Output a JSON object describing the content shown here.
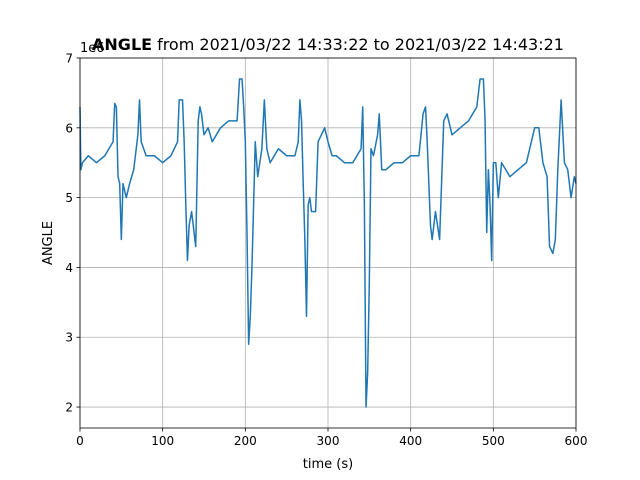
{
  "chart_data": {
    "type": "line",
    "title": [
      "ANGLE",
      "from 2021/03/22 14:33:22 to 2021/03/22 14:43:21"
    ],
    "x_label": "time (s)",
    "y_label": "ANGLE",
    "y_offset_text": "1e6",
    "x": [
      0,
      1,
      3,
      10,
      20,
      30,
      40,
      42,
      44,
      46,
      48,
      50,
      52,
      56,
      60,
      65,
      70,
      72,
      74,
      80,
      90,
      100,
      110,
      118,
      120,
      124,
      126,
      128,
      130,
      132,
      135,
      140,
      143,
      145,
      147,
      150,
      155,
      160,
      170,
      180,
      190,
      193,
      196,
      198,
      200,
      202,
      204,
      206,
      208,
      210,
      212,
      215,
      220,
      223,
      226,
      230,
      240,
      250,
      260,
      264,
      266,
      268,
      270,
      272,
      274,
      276,
      278,
      280,
      285,
      288,
      292,
      296,
      300,
      305,
      310,
      320,
      330,
      340,
      342,
      344,
      346,
      348,
      350,
      352,
      355,
      360,
      362,
      365,
      370,
      380,
      390,
      400,
      410,
      415,
      418,
      420,
      424,
      426,
      430,
      435,
      440,
      444,
      450,
      460,
      470,
      480,
      484,
      488,
      490,
      492,
      494,
      496,
      498,
      500,
      503,
      506,
      510,
      520,
      530,
      540,
      550,
      555,
      560,
      565,
      568,
      572,
      575,
      578,
      582,
      586,
      590,
      594,
      598,
      600
    ],
    "values": [
      6.3,
      5.4,
      5.5,
      5.6,
      5.5,
      5.6,
      5.8,
      6.35,
      6.3,
      5.3,
      5.2,
      4.4,
      5.2,
      5.0,
      5.2,
      5.4,
      5.9,
      6.4,
      5.8,
      5.6,
      5.6,
      5.5,
      5.6,
      5.8,
      6.4,
      6.4,
      5.8,
      4.9,
      4.1,
      4.6,
      4.8,
      4.3,
      6.1,
      6.3,
      6.2,
      5.9,
      6.0,
      5.8,
      6.0,
      6.1,
      6.1,
      6.7,
      6.7,
      6.3,
      5.8,
      4.5,
      2.9,
      3.3,
      4.0,
      4.9,
      5.8,
      5.3,
      5.7,
      6.4,
      5.7,
      5.5,
      5.7,
      5.6,
      5.6,
      5.8,
      6.4,
      6.1,
      5.2,
      4.4,
      3.3,
      4.9,
      5.0,
      4.8,
      4.8,
      5.8,
      5.9,
      6.0,
      5.8,
      5.6,
      5.6,
      5.5,
      5.5,
      5.7,
      6.3,
      4.9,
      2.0,
      2.5,
      3.8,
      5.7,
      5.6,
      5.9,
      6.2,
      5.4,
      5.4,
      5.5,
      5.5,
      5.6,
      5.6,
      6.2,
      6.3,
      5.8,
      4.6,
      4.4,
      4.8,
      4.4,
      6.1,
      6.2,
      5.9,
      6.0,
      6.1,
      6.3,
      6.7,
      6.7,
      6.1,
      4.5,
      5.4,
      4.9,
      4.1,
      5.5,
      5.5,
      5.0,
      5.5,
      5.3,
      5.4,
      5.5,
      6.0,
      6.0,
      5.5,
      5.3,
      4.3,
      4.2,
      4.4,
      5.4,
      6.4,
      5.5,
      5.4,
      5.0,
      5.3,
      5.2
    ],
    "color": "#1f77b4",
    "xlim": [
      0,
      600
    ],
    "xticks": [
      0,
      100,
      200,
      300,
      400,
      500,
      600
    ],
    "ylim": [
      1.7,
      7
    ],
    "yticks": [
      2,
      3,
      4,
      5,
      6,
      7
    ],
    "grid": true
  }
}
